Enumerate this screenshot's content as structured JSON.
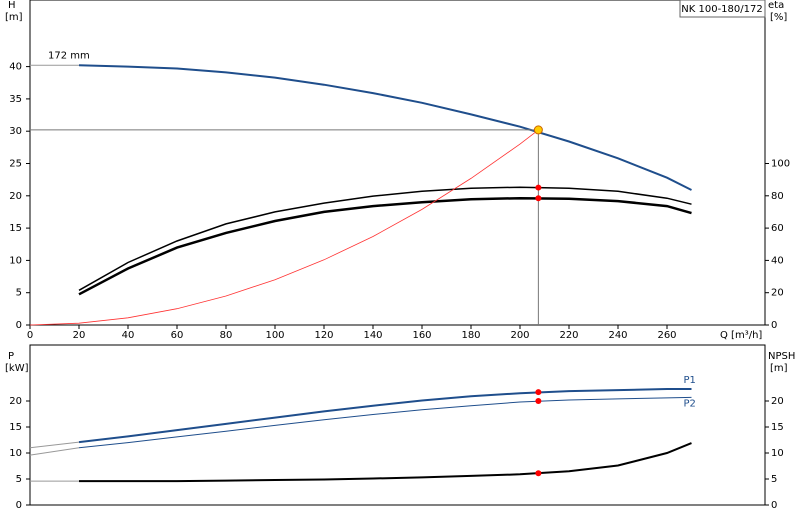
{
  "chart_data": [
    {
      "type": "line",
      "title": "NK 100-180/172",
      "x_label": "Q [m³/h]",
      "y_label": "H",
      "y_unit": "[m]",
      "y2_label": "eta",
      "y2_unit": "[%]",
      "curve_label": "172 mm",
      "xlim": [
        0,
        300
      ],
      "xticks": [
        0,
        20,
        40,
        60,
        80,
        100,
        120,
        140,
        160,
        180,
        200,
        220,
        240,
        260
      ],
      "ylim": [
        0,
        50
      ],
      "yticks": [
        0,
        5,
        10,
        15,
        20,
        25,
        30,
        35,
        40
      ],
      "y2lim": [
        0,
        200
      ],
      "y2ticks": [
        0,
        20,
        40,
        60,
        80,
        100
      ],
      "series": [
        {
          "color": "#999999",
          "width": 1,
          "x": [
            0,
            20
          ],
          "values": [
            40.2,
            40.2
          ]
        },
        {
          "color": "#1f4e8c",
          "width": 2,
          "x": [
            20,
            40,
            60,
            80,
            100,
            120,
            140,
            160,
            180,
            200,
            220,
            240,
            260,
            270
          ],
          "values": [
            40.2,
            40.0,
            39.7,
            39.1,
            38.3,
            37.2,
            35.9,
            34.4,
            32.6,
            30.7,
            28.4,
            25.8,
            22.8,
            20.9
          ]
        },
        {
          "color": "#000000",
          "width": 1.5,
          "axis": "y2",
          "x": [
            20,
            40,
            60,
            80,
            100,
            120,
            140,
            160,
            180,
            200,
            220,
            240,
            260,
            270
          ],
          "values": [
            21.5,
            38.7,
            52,
            62.6,
            70,
            75.5,
            79.8,
            82.8,
            84.7,
            85.3,
            84.7,
            82.8,
            78.5,
            74.8
          ]
        },
        {
          "color": "#000000",
          "width": 2.5,
          "axis": "y2",
          "x": [
            20,
            40,
            60,
            80,
            100,
            120,
            140,
            160,
            180,
            200,
            220,
            240,
            260,
            270
          ],
          "values": [
            19,
            35,
            47.9,
            57,
            64.4,
            70,
            73.6,
            76,
            77.9,
            78.5,
            78.2,
            76.7,
            73.6,
            69.3
          ]
        },
        {
          "color": "#ff3333",
          "width": 0.8,
          "x": [
            0,
            20,
            40,
            60,
            80,
            100,
            120,
            140,
            160,
            180,
            200,
            207.5
          ],
          "values": [
            0,
            0.28,
            1.12,
            2.52,
            4.49,
            7.01,
            10.1,
            13.7,
            17.9,
            22.7,
            28.0,
            30.2
          ]
        }
      ],
      "markers": [
        {
          "x": 207.5,
          "y": 30.2,
          "color": "#ffcc00",
          "guides": true
        },
        {
          "x": 207.5,
          "y": 85.1,
          "axis": "y2",
          "color": "#ff0000"
        },
        {
          "x": 207.5,
          "y": 78.5,
          "axis": "y2",
          "color": "#ff0000"
        }
      ]
    },
    {
      "type": "line",
      "y_label": "P",
      "y_unit": "[kW]",
      "y2_label": "NPSH",
      "y2_unit": "[m]",
      "xlim": [
        0,
        300
      ],
      "ylim": [
        0,
        30
      ],
      "yticks": [
        0,
        5,
        10,
        15,
        20
      ],
      "y2lim": [
        0,
        30
      ],
      "y2ticks": [
        0,
        5,
        10,
        15,
        20
      ],
      "series": [
        {
          "color": "#999999",
          "width": 1,
          "x": [
            0,
            20
          ],
          "values": [
            11.0,
            12.1
          ]
        },
        {
          "color": "#999999",
          "width": 1,
          "x": [
            0,
            20
          ],
          "values": [
            9.6,
            11.0
          ]
        },
        {
          "color": "#999999",
          "width": 1,
          "axis": "y2",
          "x": [
            0,
            20
          ],
          "values": [
            4.6,
            4.6
          ]
        },
        {
          "name": "P1",
          "color": "#1f4e8c",
          "width": 2,
          "x": [
            20,
            40,
            60,
            80,
            100,
            120,
            140,
            160,
            180,
            200,
            220,
            240,
            260,
            270
          ],
          "values": [
            12.1,
            13.2,
            14.4,
            15.6,
            16.8,
            18.0,
            19.1,
            20.1,
            20.9,
            21.5,
            21.9,
            22.1,
            22.3,
            22.3
          ]
        },
        {
          "name": "P2",
          "color": "#1f4e8c",
          "width": 1,
          "x": [
            20,
            40,
            60,
            80,
            100,
            120,
            140,
            160,
            180,
            200,
            220,
            240,
            260,
            270
          ],
          "values": [
            11.0,
            12.0,
            13.1,
            14.2,
            15.3,
            16.4,
            17.4,
            18.3,
            19.1,
            19.8,
            20.2,
            20.4,
            20.6,
            20.7
          ]
        },
        {
          "color": "#000000",
          "width": 2,
          "axis": "y2",
          "x": [
            20,
            40,
            60,
            80,
            100,
            120,
            140,
            160,
            180,
            200,
            220,
            240,
            260,
            270
          ],
          "values": [
            4.6,
            4.6,
            4.6,
            4.7,
            4.8,
            4.9,
            5.1,
            5.3,
            5.6,
            5.9,
            6.5,
            7.6,
            10.0,
            11.9
          ]
        }
      ],
      "markers": [
        {
          "x": 207.5,
          "y": 21.7,
          "color": "#ff0000"
        },
        {
          "x": 207.5,
          "y": 20.0,
          "color": "#ff0000"
        },
        {
          "x": 207.5,
          "y": 6.1,
          "axis": "y2",
          "color": "#ff0000"
        }
      ]
    }
  ]
}
